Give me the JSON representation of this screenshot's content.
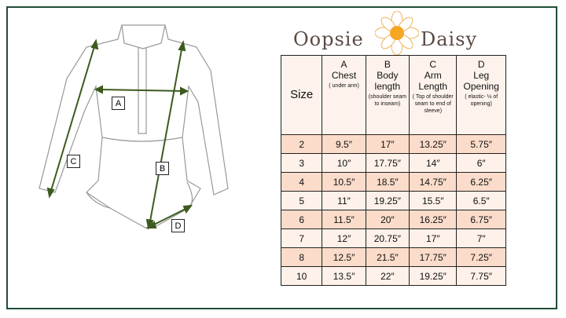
{
  "brand": {
    "name_left": "Oopsie",
    "name_right": "Daisy"
  },
  "diagram": {
    "labels": [
      "A",
      "B",
      "C",
      "D"
    ],
    "arrow_color": "#3d5a1e"
  },
  "table": {
    "headers": [
      {
        "letter": "",
        "title": "Size",
        "note": ""
      },
      {
        "letter": "A",
        "title": "Chest",
        "note": "( under arm)"
      },
      {
        "letter": "B",
        "title": "Body length",
        "note": "(shoulder seam to inseam)"
      },
      {
        "letter": "C",
        "title": "Arm Length",
        "note": "( Top of shoulder seam to end of sleeve)"
      },
      {
        "letter": "D",
        "title": "Leg Opening",
        "note": "( elastic- ½ of opening)"
      }
    ],
    "rows": [
      [
        "2",
        "9.5″",
        "17″",
        "13.25″",
        "5.75″"
      ],
      [
        "3",
        "10″",
        "17.75″",
        "14″",
        "6″"
      ],
      [
        "4",
        "10.5″",
        "18.5″",
        "14.75″",
        "6.25″"
      ],
      [
        "5",
        "11″",
        "19.25″",
        "15.5″",
        "6.5″"
      ],
      [
        "6",
        "11.5″",
        "20″",
        "16.25″",
        "6.75″"
      ],
      [
        "7",
        "12″",
        "20.75″",
        "17″",
        "7″"
      ],
      [
        "8",
        "12.5″",
        "21.5″",
        "17.75″",
        "7.25″"
      ],
      [
        "10",
        "13.5″",
        "22″",
        "19.25″",
        "7.75″"
      ]
    ]
  },
  "colors": {
    "frame": "#1f4d36",
    "row_dark": "#fbdcca",
    "row_light": "#fdf1e9",
    "header": "#fdf3ec"
  }
}
